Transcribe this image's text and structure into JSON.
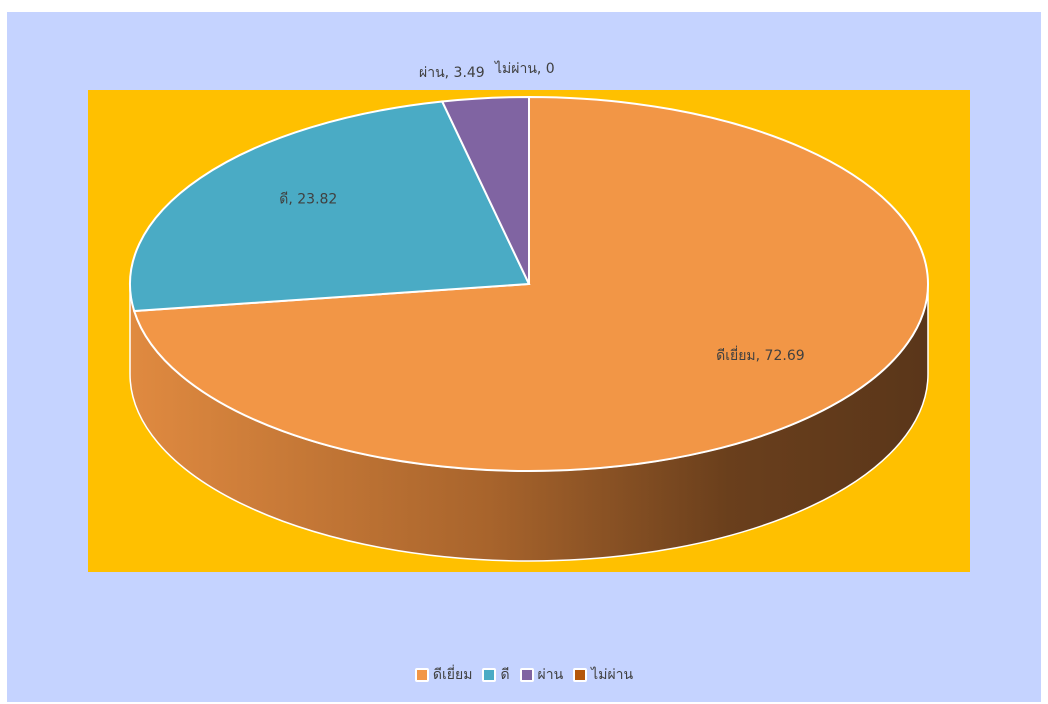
{
  "chart_data": {
    "type": "pie",
    "style": "3d",
    "categories": [
      "ดีเยี่ยม",
      "ดี",
      "ผ่าน",
      "ไม่ผ่าน"
    ],
    "values": [
      72.69,
      23.82,
      3.49,
      0
    ],
    "labels": [
      "ดีเยี่ยม, 72.69",
      "ดี, 23.82",
      "ผ่าน, 3.49",
      "ไม่ผ่าน, 0"
    ],
    "colors": [
      "#f29646",
      "#4aabc5",
      "#8064a2",
      "#b5570a"
    ],
    "plot_background": "#ffc000",
    "chart_background": "#c5d3ff",
    "legend_position": "bottom"
  }
}
